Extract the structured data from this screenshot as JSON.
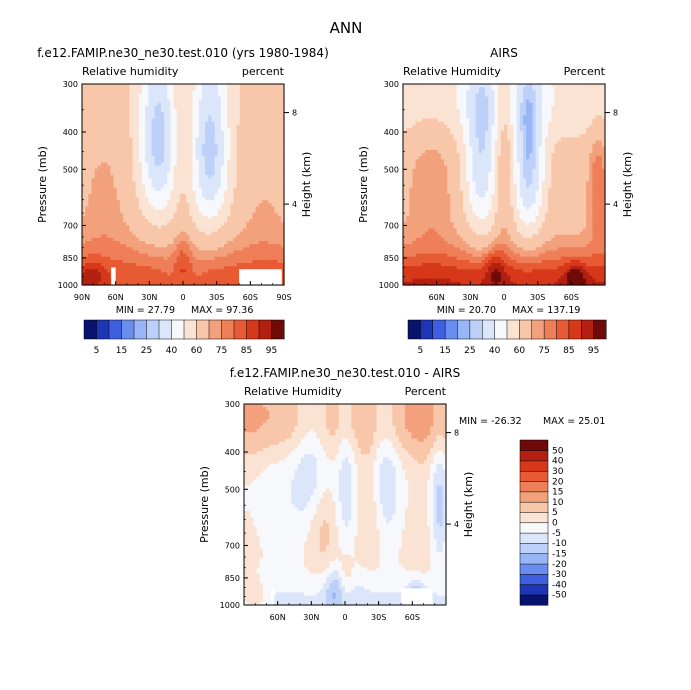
{
  "figure": {
    "title": "ANN"
  },
  "chart_data": [
    {
      "type": "heatmap",
      "title": "f.e12.FAMIP.ne30_ne30.test.010 (yrs 1980-1984)",
      "subtitle_left": "Relative humidity",
      "subtitle_right": "percent",
      "xlabel": "",
      "ylabel": "Pressure (mb)",
      "ylabel_right": "Height (km)",
      "xlim": [
        90,
        -90
      ],
      "ylim": [
        1000,
        300
      ],
      "xticks": [
        {
          "v": 90,
          "label": "90N"
        },
        {
          "v": 60,
          "label": "60N"
        },
        {
          "v": 30,
          "label": "30N"
        },
        {
          "v": 0,
          "label": "0"
        },
        {
          "v": -30,
          "label": "30S"
        },
        {
          "v": -60,
          "label": "60S"
        },
        {
          "v": -90,
          "label": "90S"
        }
      ],
      "yticks": [
        300,
        400,
        500,
        700,
        850,
        1000
      ],
      "yticks_right": [
        {
          "v": 4,
          "label": "4",
          "p": 616
        },
        {
          "v": 8,
          "label": "8",
          "p": 356
        }
      ],
      "min_text": "MIN = 27.79",
      "max_text": "MAX = 97.36",
      "min": 27.79,
      "max": 97.36,
      "field": "model",
      "masked": [
        {
          "lat": [
            64,
            60
          ],
          "p": [
            1000,
            900
          ]
        },
        {
          "lat": [
            -50,
            -88
          ],
          "p": [
            1000,
            910
          ]
        }
      ]
    },
    {
      "type": "heatmap",
      "title": "AIRS",
      "subtitle_left": "Relative Humidity",
      "subtitle_right": "Percent",
      "xlabel": "",
      "ylabel": "Pressure (mb)",
      "ylabel_right": "Height (km)",
      "xlim": [
        90,
        -90
      ],
      "ylim": [
        1000,
        300
      ],
      "xticks": [
        {
          "v": 60,
          "label": "60N"
        },
        {
          "v": 30,
          "label": "30N"
        },
        {
          "v": 0,
          "label": "0"
        },
        {
          "v": -30,
          "label": "30S"
        },
        {
          "v": -60,
          "label": "60S"
        }
      ],
      "yticks": [
        300,
        400,
        500,
        700,
        850,
        1000
      ],
      "yticks_right": [
        {
          "v": 4,
          "label": "4",
          "p": 616
        },
        {
          "v": 8,
          "label": "8",
          "p": 356
        }
      ],
      "min_text": "MIN = 20.70",
      "max_text": "MAX = 137.19",
      "min": 20.7,
      "max": 137.19,
      "field": "obs",
      "masked": []
    },
    {
      "type": "heatmap",
      "title": "f.e12.FAMIP.ne30_ne30.test.010 - AIRS",
      "subtitle_left": "Relative Humidity",
      "subtitle_right": "Percent",
      "xlabel": "",
      "ylabel": "Pressure (mb)",
      "ylabel_right": "Height (km)",
      "xlim": [
        90,
        -90
      ],
      "ylim": [
        1000,
        300
      ],
      "xticks": [
        {
          "v": 60,
          "label": "60N"
        },
        {
          "v": 30,
          "label": "30N"
        },
        {
          "v": 0,
          "label": "0"
        },
        {
          "v": -30,
          "label": "30S"
        },
        {
          "v": -60,
          "label": "60S"
        }
      ],
      "yticks": [
        300,
        400,
        500,
        700,
        850,
        1000
      ],
      "yticks_right": [
        {
          "v": 4,
          "label": "4",
          "p": 616
        },
        {
          "v": 8,
          "label": "8",
          "p": 356
        }
      ],
      "min_text": "MIN = -26.32",
      "max_text": "MAX = 25.01",
      "min": -26.32,
      "max": 25.01,
      "field": "diff",
      "masked": [
        {
          "lat": [
            66,
            63
          ],
          "p": [
            1000,
            905
          ]
        },
        {
          "lat": [
            -50,
            -78
          ],
          "p": [
            1000,
            905
          ]
        }
      ]
    }
  ],
  "colorbars": {
    "abs": {
      "orientation": "horizontal",
      "levels": [
        5,
        10,
        15,
        20,
        25,
        30,
        40,
        50,
        60,
        70,
        75,
        80,
        85,
        90,
        95
      ],
      "labels": [
        "5",
        "15",
        "25",
        "40",
        "60",
        "75",
        "85",
        "95"
      ],
      "colors": [
        "#08136e",
        "#1f35b8",
        "#3d5fe0",
        "#6a8ef0",
        "#98b6f6",
        "#bdd0fa",
        "#dce6fb",
        "#f7f8fb",
        "#fbe3d3",
        "#f8c6a8",
        "#f3a17c",
        "#ee7f58",
        "#e85a33",
        "#d7381a",
        "#b32011",
        "#6e0a08"
      ]
    },
    "diff": {
      "orientation": "vertical",
      "levels": [
        -50,
        -40,
        -30,
        -20,
        -15,
        -10,
        -5,
        0,
        5,
        10,
        15,
        20,
        30,
        40,
        50
      ],
      "labels": [
        "-50",
        "-40",
        "-30",
        "-20",
        "-15",
        "-10",
        "-5",
        "0",
        "5",
        "10",
        "15",
        "20",
        "30",
        "40",
        "50"
      ],
      "colors": [
        "#08136e",
        "#1f35b8",
        "#3d5fe0",
        "#6a8ef0",
        "#98b6f6",
        "#bdd0fa",
        "#dce6fb",
        "#f7f8fb",
        "#fbe3d3",
        "#f8c6a8",
        "#f3a17c",
        "#ee7f58",
        "#e85a33",
        "#d7381a",
        "#b32011",
        "#6e0a08"
      ]
    }
  }
}
